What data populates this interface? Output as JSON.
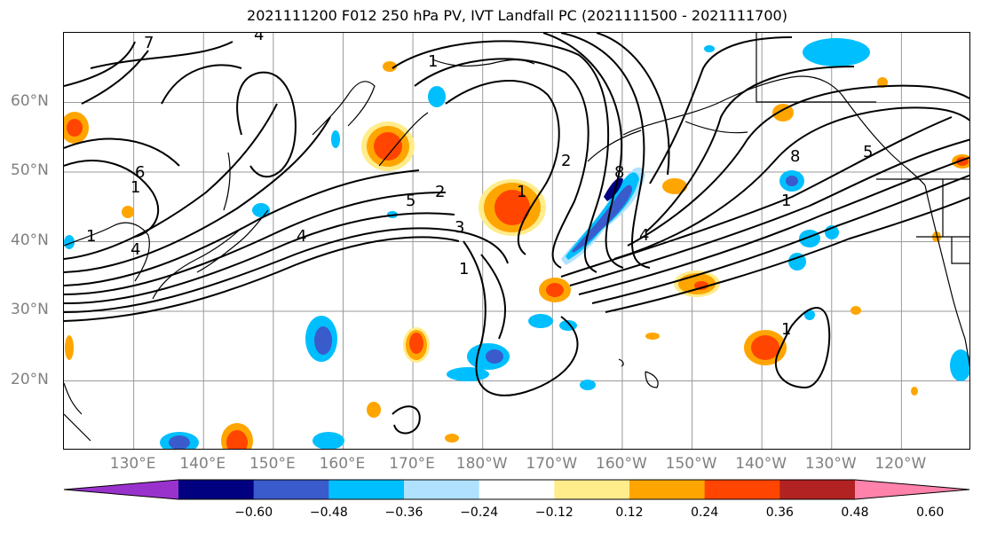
{
  "title": "2021111200 F012 250 hPa PV, IVT Landfall PC (2021111500 - 2021111700)",
  "map": {
    "lat_labels": [
      {
        "text": "60°N",
        "lat": 60
      },
      {
        "text": "50°N",
        "lat": 50
      },
      {
        "text": "40°N",
        "lat": 40
      },
      {
        "text": "30°N",
        "lat": 30
      },
      {
        "text": "20°N",
        "lat": 20
      }
    ],
    "lon_labels": [
      {
        "text": "130°E",
        "lon": 130
      },
      {
        "text": "140°E",
        "lon": 140
      },
      {
        "text": "150°E",
        "lon": 150
      },
      {
        "text": "160°E",
        "lon": 160
      },
      {
        "text": "170°E",
        "lon": 170
      },
      {
        "text": "180°W",
        "lon": 180
      },
      {
        "text": "170°W",
        "lon": 190
      },
      {
        "text": "160°W",
        "lon": 200
      },
      {
        "text": "150°W",
        "lon": 210
      },
      {
        "text": "140°W",
        "lon": 220
      },
      {
        "text": "130°W",
        "lon": 230
      },
      {
        "text": "120°W",
        "lon": 240
      }
    ],
    "extent": {
      "lon_min": 120,
      "lon_max": 250,
      "lat_min": 10,
      "lat_max": 70
    },
    "contour_labels": [
      "7",
      "4",
      "1",
      "1",
      "4",
      "1",
      "4",
      "2",
      "3",
      "5",
      "1",
      "8",
      "1",
      "1",
      "2",
      "6",
      "4",
      "5",
      "8",
      "1"
    ]
  },
  "colorbar": {
    "colors": [
      "#9932CC",
      "#000080",
      "#3A5BCB",
      "#00BFFF",
      "#B0E2FF",
      "#FFFFFF",
      "#FFEC8B",
      "#FFA500",
      "#FF4500",
      "#B22222",
      "#FF82AB"
    ],
    "ticks": [
      "−0.60",
      "−0.48",
      "−0.36",
      "−0.24",
      "−0.12",
      "0.12",
      "0.24",
      "0.36",
      "0.48",
      "0.60"
    ]
  }
}
